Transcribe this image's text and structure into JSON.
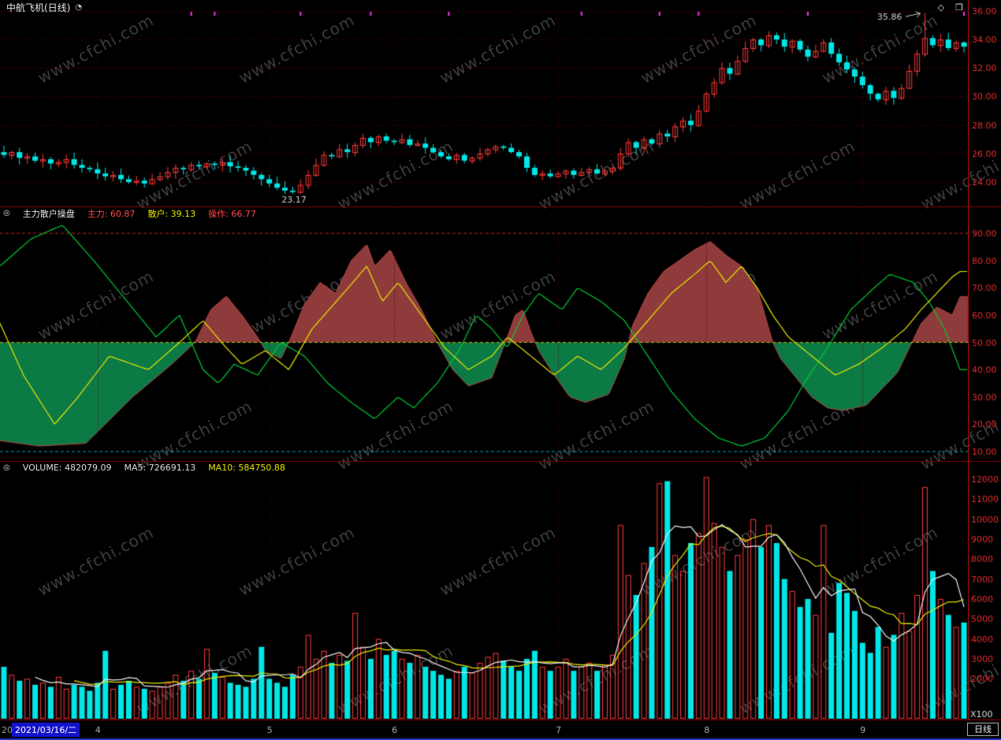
{
  "titlebar": {
    "title": "中航飞机(日线)",
    "badge_icon": "◔",
    "diamond_icon": "◇",
    "window_icon": "❐"
  },
  "watermark": "www.cfchi.com",
  "panels": {
    "indicator": {
      "icon": "◎",
      "title": "主力散户操盘",
      "zhuli_text": "主力: 60.87",
      "sanhu_text": "散户: 39.13",
      "caozuo_text": "操作: 66.77"
    },
    "volume": {
      "icon": "◎",
      "volume_text": "VOLUME: 482079.09",
      "ma5_text": "MA5: 726691.13",
      "ma10_text": "MA10: 584750.88"
    }
  },
  "statusbar": {
    "left_year": "20",
    "date": "2021/03/16/二",
    "period": "日线"
  },
  "colors": {
    "up": "#FF3A3A",
    "down": "#00E6E6",
    "axis_text": "#E23030",
    "grid": "#5A0000",
    "grid_v": "#4A0000",
    "zhuli_line": "#E6E600",
    "sanhu_line": "#00CC33",
    "caozuo_line": "#B54545",
    "fill_above": "#8F3B3B",
    "fill_below": "#0C7A45",
    "level_upper": "#CC2222",
    "level_mid": "#BBBB00",
    "level_lower": "#00AAAA",
    "ma5": "#EEEEEE",
    "ma10": "#E6E600",
    "marker": "#FF33FF",
    "annotation": "#CCCCCC"
  },
  "chart_data": [
    {
      "type": "candlestick",
      "title": "中航飞机(日线)",
      "period": "日线",
      "start_date": "2021/03/16/二",
      "ylim": [
        23.0,
        36.8
      ],
      "yticks": [
        36,
        34,
        32,
        30,
        28,
        26,
        24
      ],
      "month_ticks": [
        {
          "label": "4",
          "index": 12
        },
        {
          "label": "5",
          "index": 34
        },
        {
          "label": "6",
          "index": 50
        },
        {
          "label": "7",
          "index": 71
        },
        {
          "label": "8",
          "index": 90
        },
        {
          "label": "9",
          "index": 110
        }
      ],
      "open_rule": "previous_close",
      "closes": [
        25.9,
        26.1,
        25.7,
        25.8,
        25.5,
        25.6,
        25.3,
        25.4,
        25.6,
        25.2,
        25.0,
        24.9,
        24.6,
        24.4,
        24.5,
        24.2,
        24.0,
        24.1,
        23.9,
        24.2,
        24.4,
        24.7,
        25.0,
        24.9,
        25.2,
        25.1,
        25.3,
        25.2,
        25.4,
        25.1,
        25.0,
        24.8,
        24.5,
        24.2,
        23.9,
        23.6,
        23.4,
        23.3,
        23.8,
        24.5,
        25.2,
        25.9,
        25.8,
        26.3,
        26.1,
        26.6,
        27.1,
        26.8,
        27.2,
        26.9,
        26.8,
        27.0,
        26.6,
        26.7,
        26.4,
        26.1,
        25.8,
        25.6,
        25.9,
        25.5,
        25.7,
        26.0,
        26.3,
        26.5,
        26.4,
        26.1,
        25.8,
        25.0,
        24.5,
        24.6,
        24.4,
        24.6,
        24.8,
        24.5,
        24.7,
        24.9,
        24.6,
        24.8,
        25.0,
        26.0,
        26.8,
        26.4,
        27.0,
        26.7,
        27.4,
        27.2,
        27.9,
        28.3,
        28.0,
        29.0,
        30.2,
        31.0,
        32.0,
        31.6,
        32.5,
        33.4,
        34.0,
        33.6,
        34.3,
        34.0,
        33.5,
        33.9,
        33.3,
        32.8,
        33.2,
        33.8,
        33.0,
        32.4,
        31.9,
        31.4,
        30.8,
        30.2,
        29.8,
        30.4,
        29.9,
        30.6,
        31.8,
        33.0,
        34.1,
        33.6,
        34.0,
        33.4,
        33.8,
        33.5
      ],
      "annotations": [
        {
          "type": "low",
          "index": 37,
          "value": 23.17,
          "label": "23.17"
        },
        {
          "type": "high",
          "index": 118,
          "value": 35.86,
          "label": "35.86"
        }
      ],
      "event_marker_indices": [
        24,
        27,
        38,
        47,
        57,
        74,
        84,
        89,
        103,
        123
      ]
    },
    {
      "type": "area+line",
      "name": "主力散户操盘",
      "ylim": [
        5,
        95
      ],
      "yticks": [
        90,
        80,
        70,
        60,
        50,
        40,
        30,
        20,
        10
      ],
      "levels": {
        "upper": 90,
        "mid": 50,
        "lower": 10
      },
      "current": {
        "zhuli": 60.87,
        "sanhu": 39.13,
        "caozuo": 66.77
      },
      "series": {
        "caozuo": [
          [
            0,
            14
          ],
          [
            5,
            12
          ],
          [
            11,
            13
          ],
          [
            17,
            30
          ],
          [
            22,
            42
          ],
          [
            25,
            50
          ],
          [
            27,
            62
          ],
          [
            29,
            67
          ],
          [
            31,
            60
          ],
          [
            33,
            52
          ],
          [
            34,
            47
          ],
          [
            36,
            44
          ],
          [
            37,
            50
          ],
          [
            39,
            64
          ],
          [
            41,
            72
          ],
          [
            43,
            68
          ],
          [
            45,
            80
          ],
          [
            47,
            86
          ],
          [
            48,
            78
          ],
          [
            50,
            84
          ],
          [
            52,
            72
          ],
          [
            54,
            62
          ],
          [
            56,
            50
          ],
          [
            58,
            40
          ],
          [
            60,
            34
          ],
          [
            63,
            37
          ],
          [
            65,
            52
          ],
          [
            66,
            60
          ],
          [
            67,
            62
          ],
          [
            68,
            54
          ],
          [
            69,
            47
          ],
          [
            71,
            38
          ],
          [
            73,
            30
          ],
          [
            75,
            28
          ],
          [
            78,
            31
          ],
          [
            80,
            44
          ],
          [
            81,
            56
          ],
          [
            83,
            68
          ],
          [
            85,
            76
          ],
          [
            87,
            80
          ],
          [
            89,
            84
          ],
          [
            91,
            87
          ],
          [
            93,
            82
          ],
          [
            95,
            78
          ],
          [
            97,
            70
          ],
          [
            98,
            60
          ],
          [
            99,
            50
          ],
          [
            100,
            44
          ],
          [
            102,
            37
          ],
          [
            104,
            30
          ],
          [
            106,
            26
          ],
          [
            108,
            25
          ],
          [
            111,
            27
          ],
          [
            113,
            33
          ],
          [
            115,
            39
          ],
          [
            116,
            45
          ],
          [
            117,
            51
          ],
          [
            118,
            57
          ],
          [
            120,
            63
          ],
          [
            122,
            60
          ],
          [
            123,
            66.8
          ]
        ],
        "zhuli": [
          [
            0,
            57
          ],
          [
            3,
            38
          ],
          [
            7,
            20
          ],
          [
            10,
            30
          ],
          [
            14,
            45
          ],
          [
            19,
            40
          ],
          [
            23,
            50
          ],
          [
            26,
            58
          ],
          [
            29,
            48
          ],
          [
            31,
            42
          ],
          [
            34,
            47
          ],
          [
            37,
            40
          ],
          [
            40,
            55
          ],
          [
            44,
            68
          ],
          [
            47,
            78
          ],
          [
            49,
            65
          ],
          [
            51,
            72
          ],
          [
            54,
            60
          ],
          [
            57,
            48
          ],
          [
            60,
            40
          ],
          [
            63,
            45
          ],
          [
            65,
            52
          ],
          [
            68,
            45
          ],
          [
            71,
            38
          ],
          [
            74,
            45
          ],
          [
            77,
            40
          ],
          [
            80,
            48
          ],
          [
            83,
            58
          ],
          [
            86,
            68
          ],
          [
            89,
            75
          ],
          [
            91,
            80
          ],
          [
            93,
            72
          ],
          [
            95,
            78
          ],
          [
            97,
            70
          ],
          [
            99,
            60
          ],
          [
            101,
            52
          ],
          [
            104,
            45
          ],
          [
            107,
            38
          ],
          [
            110,
            42
          ],
          [
            113,
            48
          ],
          [
            116,
            55
          ],
          [
            118,
            62
          ],
          [
            120,
            68
          ],
          [
            122,
            74
          ],
          [
            123,
            76
          ]
        ],
        "sanhu": [
          [
            0,
            78
          ],
          [
            4,
            88
          ],
          [
            8,
            93
          ],
          [
            12,
            80
          ],
          [
            16,
            66
          ],
          [
            20,
            52
          ],
          [
            23,
            60
          ],
          [
            26,
            40
          ],
          [
            28,
            35
          ],
          [
            30,
            42
          ],
          [
            33,
            38
          ],
          [
            36,
            50
          ],
          [
            39,
            45
          ],
          [
            42,
            35
          ],
          [
            45,
            28
          ],
          [
            48,
            22
          ],
          [
            51,
            30
          ],
          [
            53,
            26
          ],
          [
            56,
            35
          ],
          [
            59,
            48
          ],
          [
            61,
            60
          ],
          [
            63,
            55
          ],
          [
            65,
            48
          ],
          [
            67,
            60
          ],
          [
            69,
            68
          ],
          [
            72,
            62
          ],
          [
            74,
            70
          ],
          [
            77,
            65
          ],
          [
            80,
            58
          ],
          [
            83,
            45
          ],
          [
            86,
            32
          ],
          [
            89,
            22
          ],
          [
            92,
            15
          ],
          [
            95,
            12
          ],
          [
            98,
            15
          ],
          [
            101,
            25
          ],
          [
            103,
            35
          ],
          [
            106,
            48
          ],
          [
            109,
            62
          ],
          [
            112,
            70
          ],
          [
            114,
            75
          ],
          [
            117,
            72
          ],
          [
            119,
            65
          ],
          [
            121,
            55
          ],
          [
            123,
            40
          ]
        ]
      }
    },
    {
      "type": "bar",
      "name": "VOLUME",
      "unit": "X100",
      "yticks": [
        12000,
        11000,
        10000,
        9000,
        8000,
        7000,
        6000,
        5000,
        4000,
        3000,
        2000
      ],
      "current": {
        "volume": 482079.09,
        "ma5": 726691.13,
        "ma10": 584750.88
      },
      "values": [
        2600,
        2200,
        1900,
        2000,
        1700,
        1800,
        1600,
        2100,
        1500,
        1700,
        1600,
        1400,
        1800,
        3400,
        1500,
        1700,
        1900,
        1600,
        1500,
        1400,
        1600,
        1800,
        2200,
        1900,
        2400,
        2000,
        3500,
        2300,
        2100,
        1800,
        1700,
        1600,
        2000,
        3600,
        2000,
        1800,
        1600,
        2200,
        2600,
        4200,
        3000,
        3400,
        2800,
        3200,
        2900,
        5300,
        3600,
        3000,
        4000,
        3200,
        3400,
        3000,
        2800,
        3200,
        2600,
        2400,
        2200,
        2000,
        2400,
        2600,
        2300,
        2800,
        3100,
        3300,
        2900,
        2600,
        2400,
        3000,
        3400,
        2600,
        2400,
        2600,
        3000,
        2400,
        2600,
        2800,
        2400,
        2700,
        3200,
        9700,
        7200,
        6200,
        7800,
        8600,
        11800,
        11900,
        8200,
        7400,
        8800,
        9300,
        12100,
        9800,
        8600,
        7400,
        8200,
        9000,
        10000,
        8600,
        9700,
        8800,
        7000,
        6400,
        5600,
        6000,
        5200,
        9700,
        4300,
        6800,
        6300,
        5400,
        3800,
        3300,
        4600,
        3600,
        4200,
        5300,
        4400,
        6200,
        11600,
        7400,
        6000,
        5200,
        4600,
        4820
      ]
    }
  ]
}
